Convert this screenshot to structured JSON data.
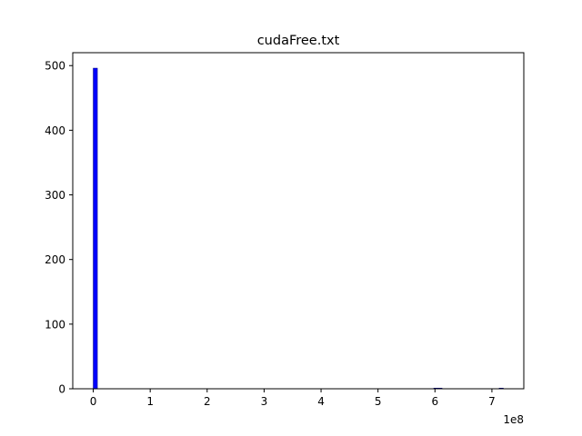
{
  "chart_data": {
    "type": "bar",
    "title": "cudaFree.txt",
    "xlabel": "",
    "ylabel": "",
    "x_offset_label": "1e8",
    "xlim": [
      -0.36,
      7.56
    ],
    "ylim": [
      0,
      520
    ],
    "x_ticks": [
      0,
      1,
      2,
      3,
      4,
      5,
      6,
      7
    ],
    "x_tick_labels": [
      "0",
      "1",
      "2",
      "3",
      "4",
      "5",
      "6",
      "7"
    ],
    "y_ticks": [
      0,
      100,
      200,
      300,
      400,
      500
    ],
    "y_tick_labels": [
      "0",
      "100",
      "200",
      "300",
      "400",
      "500"
    ],
    "grid": false,
    "series": [
      {
        "color": "#0000ff",
        "bins": [
          {
            "start": 0.0,
            "end": 0.072,
            "count": 496
          },
          {
            "start": 5.98,
            "end": 6.052,
            "count": 1
          },
          {
            "start": 6.052,
            "end": 6.124,
            "count": 1
          },
          {
            "start": 7.128,
            "end": 7.2,
            "count": 1
          }
        ]
      }
    ]
  }
}
